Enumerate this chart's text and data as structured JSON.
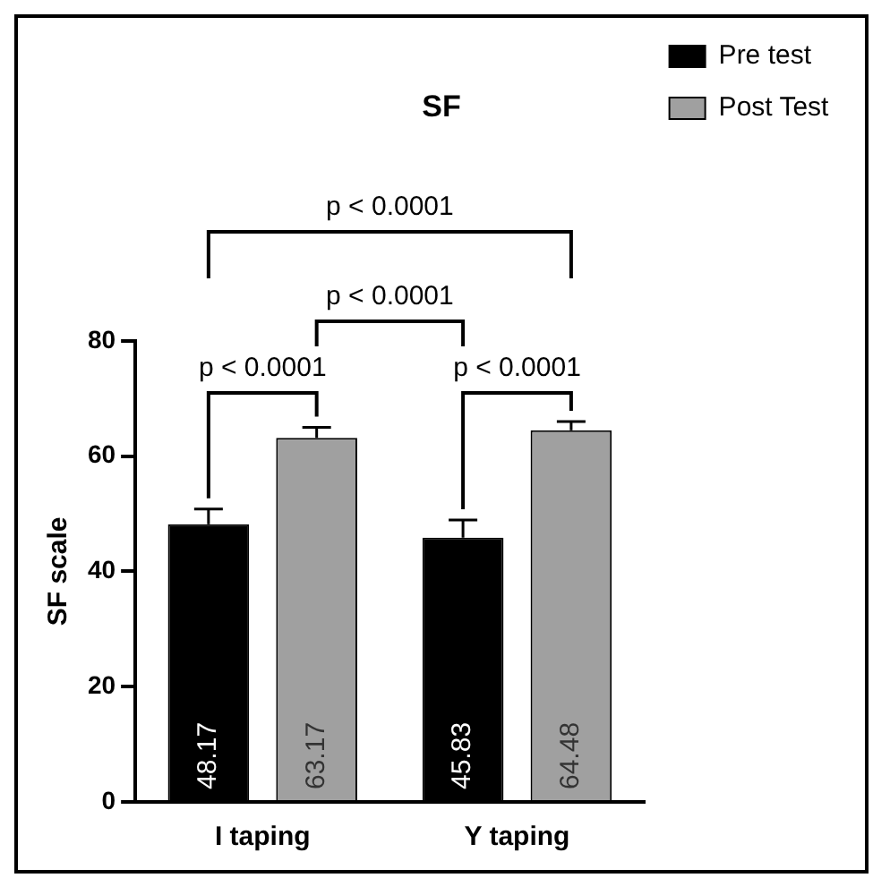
{
  "chart_data": {
    "type": "bar",
    "title": "SF",
    "ylabel": "SF scale",
    "categories": [
      "I taping",
      "Y taping"
    ],
    "series": [
      {
        "name": "Pre test",
        "color": "#000000",
        "values": [
          48.17,
          45.83
        ],
        "errors": [
          [
            48.17,
            50.8
          ],
          [
            45.83,
            48.9
          ]
        ]
      },
      {
        "name": "Post Test",
        "color": "#a0a0a0",
        "values": [
          63.17,
          64.48
        ],
        "errors": [
          [
            63.17,
            65.0
          ],
          [
            64.48,
            66.0
          ]
        ]
      }
    ],
    "ylim": [
      0,
      80
    ],
    "yticks": [
      0,
      20,
      40,
      60,
      80
    ],
    "grid": false,
    "legend": "right",
    "data_labels": true,
    "annotations": [
      "p < 0.0001",
      "p < 0.0001",
      "p < 0.0001",
      "p < 0.0001"
    ]
  }
}
